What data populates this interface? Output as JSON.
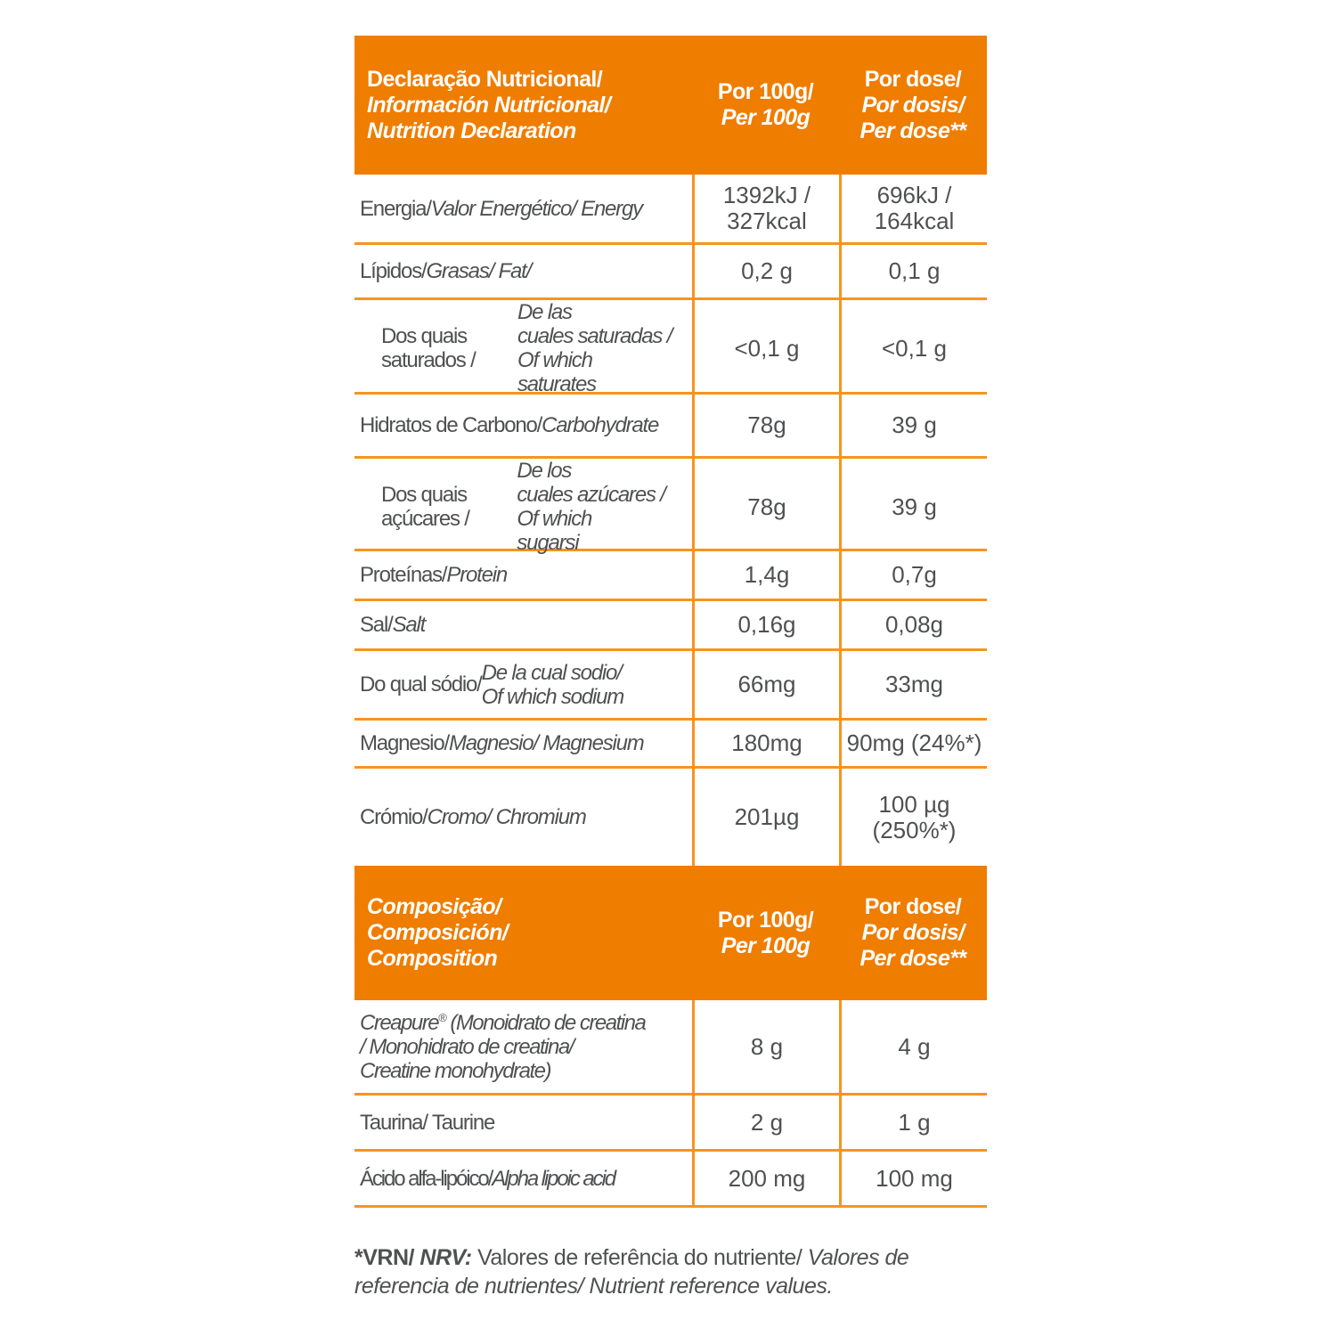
{
  "colors": {
    "header_orange": "#ef7d00",
    "grid_orange": "#f7941e",
    "text_gray": "#4f5051",
    "header_text": "#ffffff"
  },
  "table1": {
    "header": {
      "line1": "Declaração Nutricional/",
      "line2": "Información Nutricional/",
      "line3": "Nutrition Declaration",
      "per100_line1": "Por 100g/",
      "per100_line2": "Per 100g",
      "dose_line1": "Por dose/",
      "dose_line2": "Por dosis/",
      "dose_line3": "Per dose**"
    },
    "rows": [
      {
        "label": "Energia/ ",
        "label_italic": "Valor Energético/ Energy",
        "per_100g": "1392kJ /\n327kcal",
        "per_dose": "696kJ /\n164kcal"
      },
      {
        "label": "Lípidos/ ",
        "label_italic": "Grasas/ Fat/",
        "per_100g": "0,2 g",
        "per_dose": "0,1 g"
      },
      {
        "label": "Dos quais saturados / ",
        "label_italic": "De las\ncuales saturadas / Of which\nsaturates",
        "per_100g": "<0,1 g",
        "per_dose": "<0,1 g"
      },
      {
        "label": "Hidratos de Carbono/\n",
        "label_italic": "Carbohydrate",
        "per_100g": "78g",
        "per_dose": "39 g"
      },
      {
        "label": "Dos quais açúcares / ",
        "label_italic": "De los\ncuales azúcares / Of which\nsugarsi",
        "per_100g": "78g",
        "per_dose": "39 g"
      },
      {
        "label": "Proteínas/ ",
        "label_italic": "Protein",
        "per_100g": "1,4g",
        "per_dose": "0,7g"
      },
      {
        "label": "Sal/ ",
        "label_italic": "Salt",
        "per_100g": "0,16g",
        "per_dose": "0,08g"
      },
      {
        "label": "Do qual sódio/ ",
        "label_italic": "De la cual sodio/\nOf which sodium",
        "per_100g": "66mg",
        "per_dose": "33mg"
      },
      {
        "label": "Magnesio/ ",
        "label_italic": "Magnesio/ Magnesium",
        "per_100g": "180mg",
        "per_dose": "90mg (24%*)"
      },
      {
        "label": "Crómio/ ",
        "label_italic": "Cromo/ Chromium",
        "per_100g": "201µg",
        "per_dose": "100 µg\n(250%*)"
      }
    ]
  },
  "table2": {
    "header": {
      "line1": "Composição/",
      "line2": "Composición/",
      "line3": "Composition",
      "per100_line1": "Por 100g/",
      "per100_line2": "Per 100g",
      "dose_line1": "Por dose/",
      "dose_line2": "Por dosis/",
      "dose_line3": "Per dose**"
    },
    "rows": [
      {
        "brand": "Creapure",
        "reg": "®",
        "label_italic": " (Monoidrato de creatina\n/ Monohidrato de creatina/\nCreatine monohydrate)",
        "per_100g": "8 g",
        "per_dose": "4 g"
      },
      {
        "label": "Taurina/ Taurine",
        "label_italic": "",
        "per_100g": "2 g",
        "per_dose": "1 g"
      },
      {
        "label": "Ácido alfa-lipóico/ ",
        "label_italic": "Alpha lipoic acid",
        "per_100g": "200 mg",
        "per_dose": "100 mg"
      }
    ]
  },
  "footnote": {
    "bold_lead": "*VRN/",
    "bold_italic": "NRV:",
    "plain": "Valores de referência do nutriente/",
    "italic": "Valores de referencia de nutrientes/ Nutrient reference values."
  }
}
